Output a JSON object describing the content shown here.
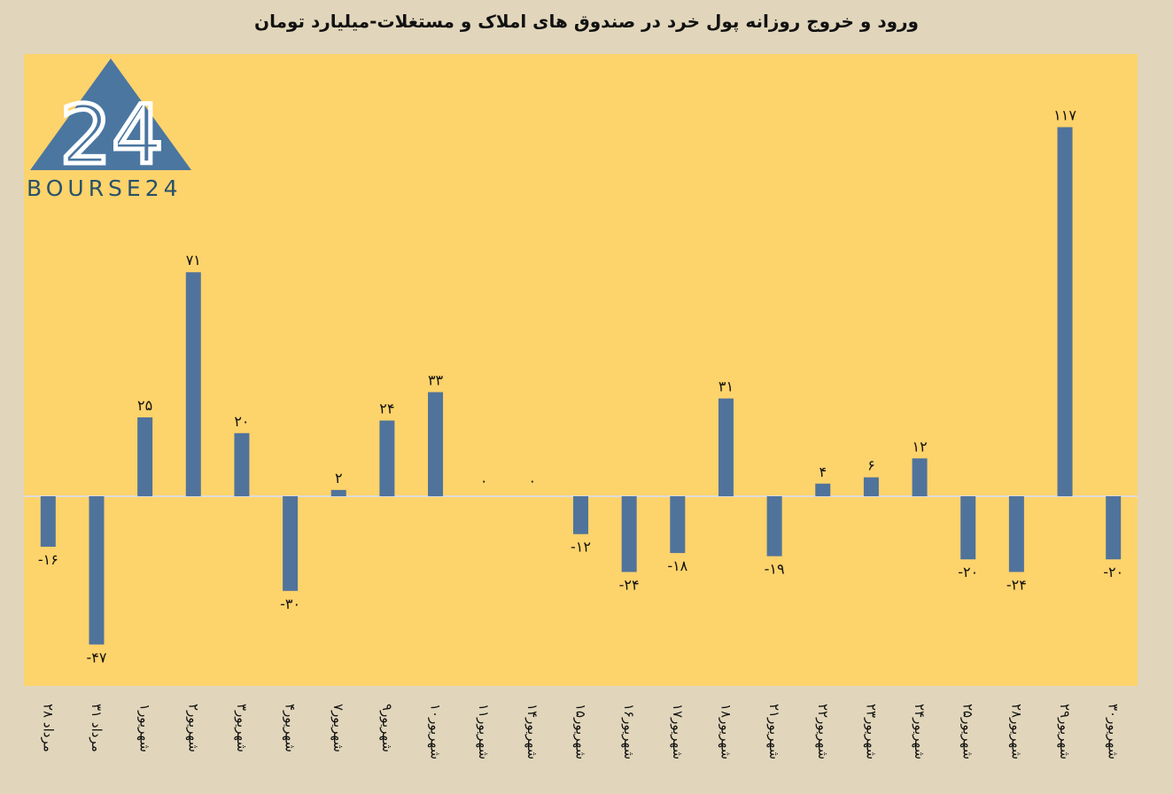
{
  "title": "ورود و خروج روزانه پول خرد در صندوق های املاک و مستغلات-میلیارد تومان",
  "logo": {
    "text": "BOURSE24",
    "mark": "24",
    "colors": {
      "triangle": "#4a76a0",
      "mark": "#ffffff",
      "text": "#27516a"
    }
  },
  "colors": {
    "background": "#e1d6bb",
    "plot_background": "#fdd36b",
    "bar": "#50739c",
    "zero_line": "#dcdcdc"
  },
  "chart_data": {
    "type": "bar",
    "title": "ورود و خروج روزانه پول خرد در صندوق های املاک و مستغلات-میلیارد تومان",
    "xlabel": "",
    "ylabel": "",
    "grid": false,
    "legend": "none",
    "ylim": [
      -55,
      132
    ],
    "categories": [
      "۲۸ مرداد",
      "۳۱ مرداد",
      "۱شهریور",
      "۲شهریور",
      "۳شهریور",
      "۴شهریور",
      "۷شهریور",
      "۹شهریور",
      "۱۰شهریور",
      "۱۱شهریور",
      "۱۴شهریور",
      "۱۵شهریور",
      "۱۶شهریور",
      "۱۷شهریور",
      "۱۸شهریور",
      "۲۱شهریور",
      "۲۲شهریور",
      "۲۳شهریور",
      "۲۴شهریور",
      "۲۵شهریور",
      "۲۸شهریور",
      "۲۹شهریور",
      "۳۰شهریور"
    ],
    "values": [
      -16,
      -47,
      25,
      71,
      20,
      -30,
      2,
      24,
      33,
      0,
      0,
      -12,
      -24,
      -18,
      31,
      -19,
      4,
      6,
      12,
      -20,
      -24,
      117,
      -20
    ],
    "labels": [
      "-۱۶",
      "-۴۷",
      "۲۵",
      "۷۱",
      "۲۰",
      "-۳۰",
      "۲",
      "۲۴",
      "۳۳",
      "۰",
      "۰",
      "-۱۲",
      "-۲۴",
      "-۱۸",
      "۳۱",
      "-۱۹",
      "۴",
      "۶",
      "۱۲",
      "-۲۰",
      "-۲۴",
      "۱۱۷",
      "-۲۰"
    ]
  }
}
